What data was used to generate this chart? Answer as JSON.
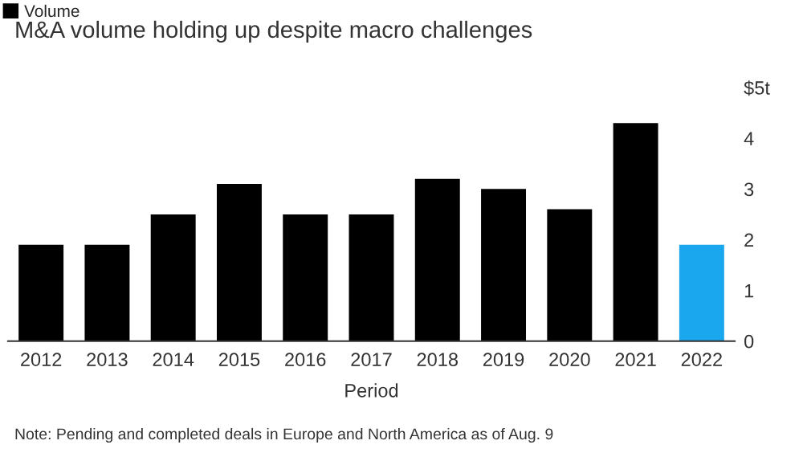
{
  "chart_data": {
    "type": "bar",
    "title": "M&A volume holding up despite macro challenges",
    "xlabel": "Period",
    "categories": [
      "2012",
      "2013",
      "2014",
      "2015",
      "2016",
      "2017",
      "2018",
      "2019",
      "2020",
      "2021",
      "2022"
    ],
    "series": [
      {
        "name": "Volume",
        "color": "#000000",
        "colors": [
          "#000000",
          "#000000",
          "#000000",
          "#000000",
          "#000000",
          "#000000",
          "#000000",
          "#000000",
          "#000000",
          "#000000",
          "#1aa7ee"
        ],
        "values": [
          1.9,
          1.9,
          2.5,
          3.1,
          2.5,
          2.5,
          3.2,
          3.0,
          2.6,
          4.3,
          1.9
        ]
      }
    ],
    "ylim": [
      0,
      5
    ],
    "yticks": [
      0,
      1,
      2,
      3,
      4,
      {
        "value": 5,
        "label": "$5t"
      }
    ],
    "grid": false,
    "legend": "top left",
    "annotations": [
      "Note: Pending and completed deals in Europe and North America as of Aug. 9"
    ]
  }
}
